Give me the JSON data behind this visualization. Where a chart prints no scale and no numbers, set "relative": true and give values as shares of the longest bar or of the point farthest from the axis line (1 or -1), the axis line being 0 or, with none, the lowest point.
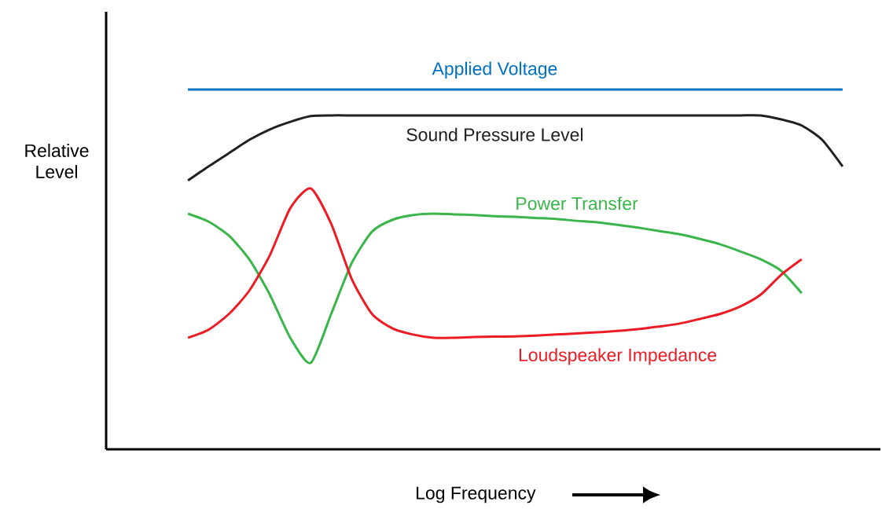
{
  "chart_data": {
    "type": "line",
    "relative": true,
    "xlabel": "Log Frequency",
    "ylabel": "Relative Level",
    "categories": [
      null,
      null,
      null,
      null,
      null,
      null,
      null,
      null,
      null,
      null,
      null,
      null,
      null,
      null,
      null,
      null,
      null,
      null,
      null,
      null,
      null,
      null,
      null,
      null,
      null,
      null,
      null,
      null,
      null,
      null,
      null,
      null,
      null
    ],
    "series": [
      {
        "name": "Applied Voltage",
        "color": "#0070c0",
        "values": [
          1,
          1,
          1,
          1,
          1,
          1,
          1,
          1,
          1,
          1,
          1,
          1,
          1,
          1,
          1,
          1,
          1,
          1,
          1,
          1,
          1,
          1,
          1,
          1,
          1,
          1,
          1,
          1,
          1,
          1,
          1,
          1,
          1
        ]
      },
      {
        "name": "Sound Pressure Level",
        "color": "#231f20",
        "values": [
          0.747,
          0.786,
          0.823,
          0.86,
          0.889,
          0.91,
          0.926,
          0.928,
          0.928,
          0.928,
          0.928,
          0.928,
          0.928,
          0.928,
          0.928,
          0.928,
          0.928,
          0.928,
          0.928,
          0.928,
          0.928,
          0.928,
          0.928,
          0.928,
          0.928,
          0.928,
          0.928,
          0.928,
          0.928,
          0.917,
          0.9,
          0.86,
          0.786
        ]
      },
      {
        "name": "Power Transfer",
        "color": "#39b54a",
        "values": [
          0.655,
          0.633,
          0.594,
          0.528,
          0.43,
          0.31,
          0.24,
          0.376,
          0.517,
          0.605,
          0.638,
          0.651,
          0.655,
          0.653,
          0.651,
          0.648,
          0.646,
          0.643,
          0.64,
          0.635,
          0.631,
          0.624,
          0.616,
          0.607,
          0.598,
          0.585,
          0.57,
          0.55,
          0.528,
          0.496,
          0.434,
          null,
          null
        ]
      },
      {
        "name": "Loudspeaker Impedance",
        "color": "#ed1c24",
        "values": [
          0.31,
          0.332,
          0.376,
          0.441,
          0.539,
          0.67,
          0.725,
          0.627,
          0.474,
          0.376,
          0.336,
          0.319,
          0.31,
          0.31,
          0.312,
          0.313,
          0.314,
          0.316,
          0.319,
          0.322,
          0.325,
          0.329,
          0.334,
          0.341,
          0.349,
          0.362,
          0.376,
          0.397,
          0.43,
          0.485,
          0.528,
          null,
          null
        ]
      }
    ],
    "marker": "none",
    "line_style": "solid"
  }
}
